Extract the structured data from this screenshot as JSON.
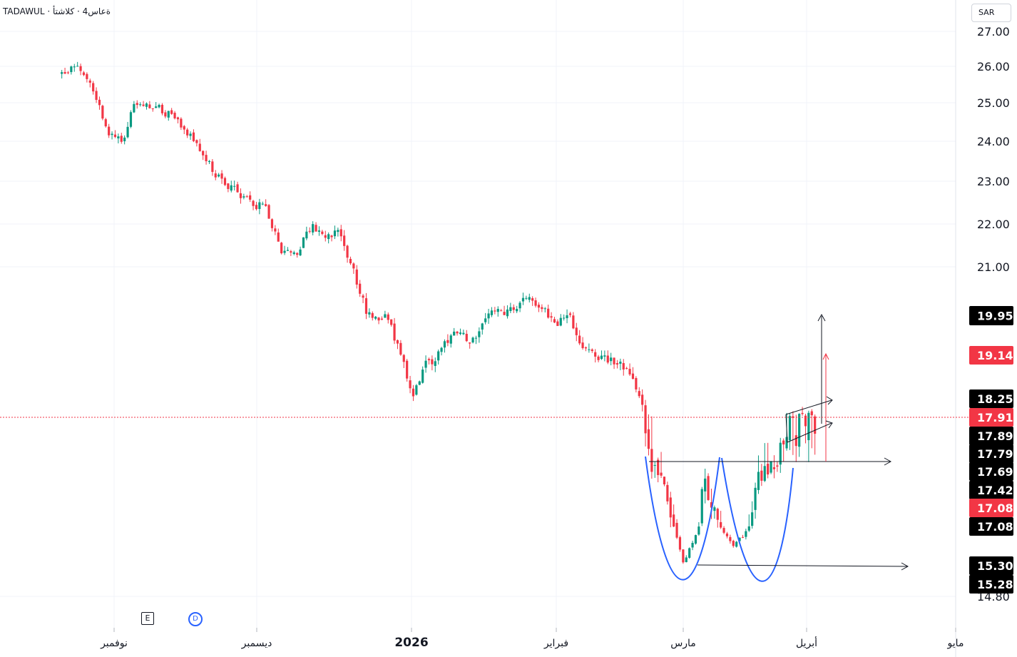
{
  "header": {
    "title": "TADAWUL · ةعاس4 · كلاشتأ"
  },
  "currency": "SAR",
  "markers": {
    "earnings": "E",
    "dividend": "D"
  },
  "chart_data": {
    "type": "candlestick",
    "title": "",
    "currency": "SAR",
    "y_axis_ticks": [
      "14.80",
      "27.00",
      "26.00",
      "25.00",
      "24.00",
      "23.00",
      "22.00",
      "21.00"
    ],
    "x_axis_labels": [
      "نوفمبر",
      "ديسمبر",
      "2026",
      "فبراير",
      "مارس",
      "أبريل",
      "مايو"
    ],
    "grid": true,
    "current_price": 17.91,
    "price_labels": [
      {
        "value": "19.95",
        "style": "dark"
      },
      {
        "value": "19.14",
        "style": "red"
      },
      {
        "value": "18.25",
        "style": "dark"
      },
      {
        "value": "17.91",
        "style": "red"
      },
      {
        "value": "17.89",
        "style": "dark"
      },
      {
        "value": "17.79",
        "style": "dark"
      },
      {
        "value": "17.69",
        "style": "dark"
      },
      {
        "value": "17.42",
        "style": "dark"
      },
      {
        "value": "17.08",
        "style": "red"
      },
      {
        "value": "17.08",
        "style": "dark"
      },
      {
        "value": "15.30",
        "style": "dark"
      },
      {
        "value": "15.28",
        "style": "dark"
      }
    ],
    "colors": {
      "up": "#089981",
      "down": "#f23645",
      "pattern": "#2962ff",
      "dark_label": "#000000",
      "red_label": "#f23645"
    },
    "close_path": [
      [
        "2025-10-21",
        25.8
      ],
      [
        "2025-10-24",
        26.05
      ],
      [
        "2025-10-27",
        25.6
      ],
      [
        "2025-10-31",
        24.15
      ],
      [
        "2025-11-03",
        24.0
      ],
      [
        "2025-11-05",
        25.0
      ],
      [
        "2025-11-10",
        24.9
      ],
      [
        "2025-11-14",
        24.55
      ],
      [
        "2025-11-18",
        24.0
      ],
      [
        "2025-11-22",
        23.2
      ],
      [
        "2025-11-26",
        22.8
      ],
      [
        "2025-11-30",
        22.5
      ],
      [
        "2025-12-03",
        22.35
      ],
      [
        "2025-12-06",
        21.4
      ],
      [
        "2025-12-09",
        21.3
      ],
      [
        "2025-12-12",
        22.0
      ],
      [
        "2025-12-15",
        21.6
      ],
      [
        "2025-12-17",
        21.9
      ],
      [
        "2025-12-20",
        21.0
      ],
      [
        "2025-12-23",
        20.0
      ],
      [
        "2025-12-27",
        19.9
      ],
      [
        "2025-12-30",
        19.2
      ],
      [
        "2026-01-01",
        18.3
      ],
      [
        "2026-01-04",
        18.9
      ],
      [
        "2026-01-07",
        19.2
      ],
      [
        "2026-01-10",
        19.55
      ],
      [
        "2026-01-14",
        19.45
      ],
      [
        "2026-01-18",
        19.95
      ],
      [
        "2026-01-22",
        20.05
      ],
      [
        "2026-01-26",
        20.4
      ],
      [
        "2026-01-29",
        20.1
      ],
      [
        "2026-02-01",
        19.8
      ],
      [
        "2026-02-04",
        19.9
      ],
      [
        "2026-02-07",
        19.3
      ],
      [
        "2026-02-11",
        19.1
      ],
      [
        "2026-02-15",
        19.0
      ],
      [
        "2026-02-18",
        18.6
      ],
      [
        "2026-02-21",
        17.9
      ],
      [
        "2026-02-24",
        17.6
      ],
      [
        "2026-02-27",
        16.95
      ],
      [
        "2026-03-01",
        15.4
      ],
      [
        "2026-03-04",
        16.6
      ],
      [
        "2026-03-06",
        17.55
      ],
      [
        "2026-03-09",
        17.2
      ],
      [
        "2026-03-11",
        16.9
      ],
      [
        "2026-03-14",
        16.2
      ],
      [
        "2026-03-17",
        16.9
      ],
      [
        "2026-03-20",
        17.6
      ],
      [
        "2026-03-23",
        17.75
      ],
      [
        "2026-03-27",
        17.85
      ],
      [
        "2026-03-31",
        17.88
      ],
      [
        "2026-04-03",
        17.91
      ]
    ]
  }
}
